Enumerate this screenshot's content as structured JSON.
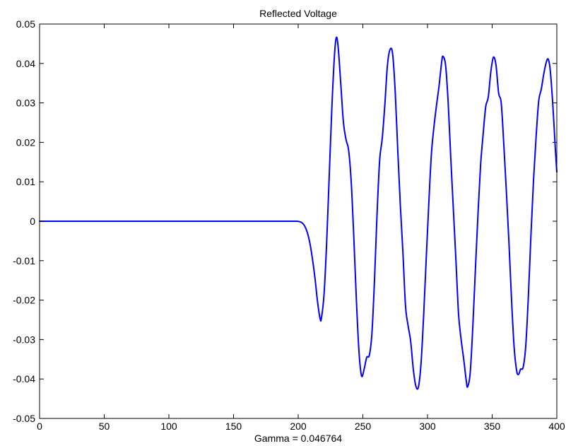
{
  "chart_data": {
    "type": "line",
    "title": "Reflected Voltage",
    "xlabel": "Gamma = 0.046764",
    "ylabel": "",
    "xlim": [
      0,
      400
    ],
    "ylim": [
      -0.05,
      0.05
    ],
    "xticks": [
      0,
      50,
      100,
      150,
      200,
      250,
      300,
      350,
      400
    ],
    "xtick_labels": [
      "0",
      "50",
      "100",
      "150",
      "200",
      "250",
      "300",
      "350",
      "400"
    ],
    "yticks": [
      0.05,
      0.04,
      0.03,
      0.02,
      0.01,
      0,
      -0.01,
      -0.02,
      -0.03,
      -0.04,
      -0.05
    ],
    "ytick_labels": [
      "0.05",
      "0.04",
      "0.03",
      "0.02",
      "0.01",
      "0",
      "-0.01",
      "-0.02",
      "-0.03",
      "-0.04",
      "-0.05"
    ],
    "grid": false,
    "series": [
      {
        "color": "#0000ff",
        "points": [
          [
            0,
            0
          ],
          [
            50,
            0
          ],
          [
            100,
            0
          ],
          [
            150,
            0
          ],
          [
            190,
            0
          ],
          [
            197,
            0
          ],
          [
            199,
            0
          ],
          [
            201,
            -0.0001
          ],
          [
            203,
            -0.0004
          ],
          [
            205,
            -0.0012
          ],
          [
            207,
            -0.0028
          ],
          [
            209,
            -0.0055
          ],
          [
            211,
            -0.0095
          ],
          [
            213,
            -0.0145
          ],
          [
            215,
            -0.0205
          ],
          [
            217,
            -0.0248
          ],
          [
            218,
            -0.0245
          ],
          [
            220,
            -0.0185
          ],
          [
            222,
            -0.0055
          ],
          [
            224,
            0.0115
          ],
          [
            226,
            0.0285
          ],
          [
            228,
            0.0418
          ],
          [
            229.5,
            0.0466
          ],
          [
            231,
            0.0438
          ],
          [
            233,
            0.0345
          ],
          [
            235,
            0.025
          ],
          [
            237,
            0.0207
          ],
          [
            239,
            0.018
          ],
          [
            241,
            0.01
          ],
          [
            243,
            -0.004
          ],
          [
            245,
            -0.02
          ],
          [
            247,
            -0.033
          ],
          [
            249,
            -0.0392
          ],
          [
            251,
            -0.0375
          ],
          [
            253,
            -0.0345
          ],
          [
            255,
            -0.034
          ],
          [
            257,
            -0.0285
          ],
          [
            259,
            -0.015
          ],
          [
            261,
            0.002
          ],
          [
            263,
            0.0155
          ],
          [
            265,
            0.021
          ],
          [
            267,
            0.0295
          ],
          [
            269,
            0.0395
          ],
          [
            271,
            0.0435
          ],
          [
            273,
            0.0425
          ],
          [
            275,
            0.033
          ],
          [
            277,
            0.018
          ],
          [
            279,
            0.004
          ],
          [
            281,
            -0.008
          ],
          [
            283,
            -0.0215
          ],
          [
            285,
            -0.0265
          ],
          [
            287,
            -0.0305
          ],
          [
            289,
            -0.0375
          ],
          [
            291,
            -0.0418
          ],
          [
            293,
            -0.042
          ],
          [
            295,
            -0.036
          ],
          [
            297,
            -0.024
          ],
          [
            299,
            -0.0095
          ],
          [
            301,
            0.0045
          ],
          [
            303,
            0.017
          ],
          [
            305,
            0.024
          ],
          [
            307,
            0.0295
          ],
          [
            309,
            0.0345
          ],
          [
            311,
            0.0405
          ],
          [
            312,
            0.0418
          ],
          [
            314,
            0.0395
          ],
          [
            316,
            0.03
          ],
          [
            318,
            0.016
          ],
          [
            320,
            0.003
          ],
          [
            322,
            -0.01
          ],
          [
            324,
            -0.0235
          ],
          [
            326,
            -0.03
          ],
          [
            328,
            -0.035
          ],
          [
            330,
            -0.0405
          ],
          [
            331,
            -0.042
          ],
          [
            333,
            -0.0385
          ],
          [
            335,
            -0.027
          ],
          [
            337,
            -0.0125
          ],
          [
            339,
            0.0015
          ],
          [
            341,
            0.014
          ],
          [
            343,
            0.022
          ],
          [
            345,
            0.029
          ],
          [
            347,
            0.0315
          ],
          [
            349,
            0.038
          ],
          [
            351,
            0.0416
          ],
          [
            353,
            0.0395
          ],
          [
            355,
            0.0325
          ],
          [
            357,
            0.03
          ],
          [
            359,
            0.0195
          ],
          [
            361,
            0.0075
          ],
          [
            363,
            -0.0055
          ],
          [
            365,
            -0.02
          ],
          [
            367,
            -0.032
          ],
          [
            369,
            -0.038
          ],
          [
            370.5,
            -0.0388
          ],
          [
            372,
            -0.0375
          ],
          [
            374,
            -0.037
          ],
          [
            376,
            -0.0315
          ],
          [
            378,
            -0.019
          ],
          [
            380,
            -0.0035
          ],
          [
            382,
            0.0105
          ],
          [
            384,
            0.0215
          ],
          [
            386,
            0.0305
          ],
          [
            388,
            0.0335
          ],
          [
            390,
            0.0375
          ],
          [
            392,
            0.0405
          ],
          [
            393.5,
            0.041
          ],
          [
            395,
            0.038
          ],
          [
            397,
            0.029
          ],
          [
            399,
            0.0175
          ],
          [
            400,
            0.0125
          ]
        ]
      }
    ]
  }
}
